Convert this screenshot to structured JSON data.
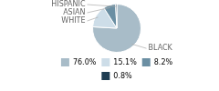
{
  "chart_data": {
    "type": "pie",
    "categories": [
      "BLACK",
      "WHITE",
      "ASIAN",
      "HISPANIC"
    ],
    "values": [
      76.0,
      15.1,
      8.2,
      0.8
    ],
    "value_labels": [
      "76.0%",
      "15.1%",
      "8.2%",
      "0.8%"
    ],
    "colors": [
      "#a8bcc8",
      "#cddde8",
      "#6b8fa3",
      "#1e3d52"
    ],
    "legend": "bottom"
  }
}
